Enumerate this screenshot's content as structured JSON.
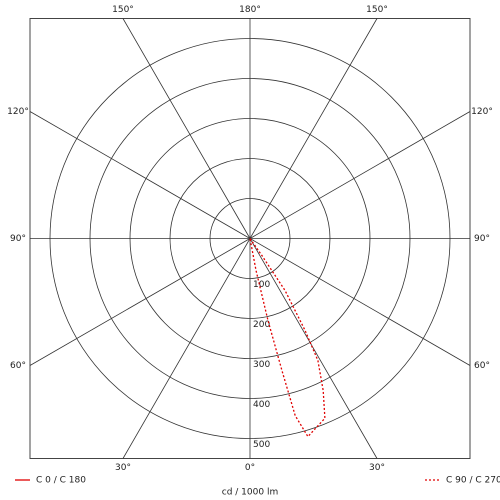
{
  "chart_data": {
    "type": "polar",
    "x_label": "cd / 1000 lm",
    "rlim": [
      0,
      550
    ],
    "rticks": [
      100,
      200,
      300,
      400,
      500
    ],
    "angle_ticks": [
      {
        "value": 0,
        "label": "0°"
      },
      {
        "value": 30,
        "label": "30°"
      },
      {
        "value": 60,
        "label": "60°"
      },
      {
        "value": 90,
        "label": "90°"
      },
      {
        "value": 120,
        "label": "120°"
      },
      {
        "value": 150,
        "label": "150°"
      },
      {
        "value": 180,
        "label": "180°"
      },
      {
        "value": -150,
        "label": "150°"
      },
      {
        "value": -120,
        "label": "120°"
      },
      {
        "value": -90,
        "label": "90°"
      },
      {
        "value": -60,
        "label": "60°"
      },
      {
        "value": -30,
        "label": "30°"
      }
    ],
    "series": [
      {
        "name": "C 0 / C 180",
        "color": "#e00000",
        "line_style": "solid",
        "x": [],
        "values": []
      },
      {
        "name": "C 90 / C 270",
        "color": "#e00000",
        "line_style": "dotted",
        "x": [
          0,
          35,
          34,
          30.9,
          29.1,
          25.7,
          22.6,
          16.3,
          14.3,
          13.6,
          12.4,
          10.6,
          0
        ],
        "values": [
          0,
          52,
          157,
          268,
          349,
          422,
          487,
          516,
          457,
          340,
          210,
          81,
          0
        ]
      }
    ]
  }
}
